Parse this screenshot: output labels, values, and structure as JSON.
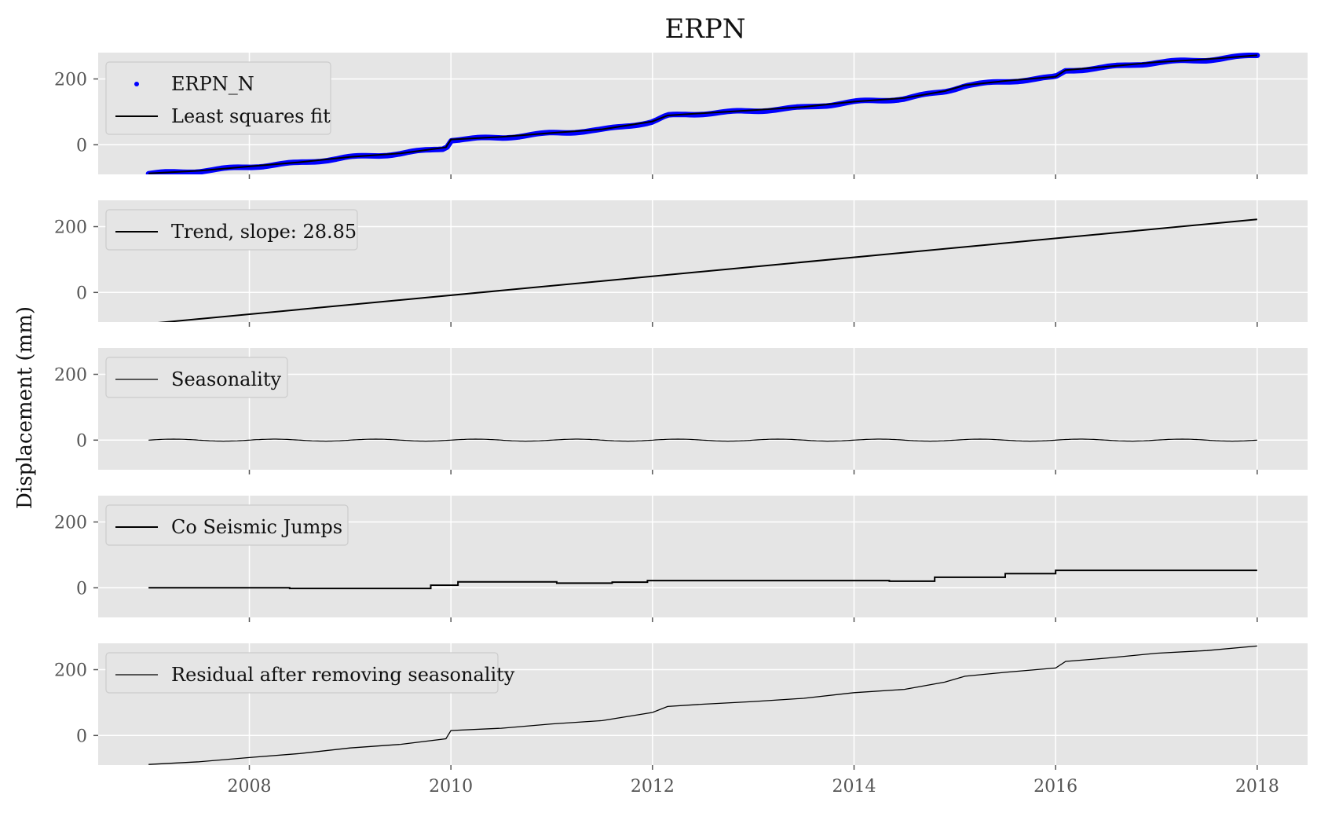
{
  "chart_data": {
    "type": "line",
    "title": "ERPN",
    "ylabel": "Displacement (mm)",
    "xlabel": "",
    "xlim": [
      2006.5,
      2018.5
    ],
    "ylim": [
      -90,
      280
    ],
    "x_ticks": [
      2008,
      2010,
      2012,
      2014,
      2016,
      2018
    ],
    "y_ticks": [
      0,
      200
    ],
    "grid": true,
    "legend_position": "top-left",
    "colors": {
      "axes_bg": "#e5e5e5",
      "grid": "#ffffff",
      "line": "#000000",
      "points": "#0000ff",
      "tick_text": "#555555"
    },
    "subplots": [
      {
        "id": "observed",
        "series": [
          {
            "name": "ERPN_N",
            "kind": "points",
            "x": [
              2007.0,
              2007.5,
              2008.0,
              2008.5,
              2009.0,
              2009.5,
              2009.95,
              2010.0,
              2010.5,
              2011.0,
              2011.5,
              2012.0,
              2012.15,
              2012.5,
              2013.0,
              2013.5,
              2014.0,
              2014.5,
              2014.9,
              2015.1,
              2015.5,
              2016.0,
              2016.1,
              2016.5,
              2017.0,
              2017.5,
              2018.0
            ],
            "y": [
              -88,
              -80,
              -67,
              -55,
              -38,
              -27,
              -10,
              15,
              22,
              35,
              45,
              70,
              88,
              95,
              103,
              113,
              130,
              140,
              162,
              180,
              192,
              205,
              225,
              235,
              250,
              258,
              272
            ]
          },
          {
            "name": "Least squares fit",
            "kind": "line",
            "x": [
              2007.0,
              2007.5,
              2008.0,
              2008.5,
              2009.0,
              2009.5,
              2009.95,
              2010.0,
              2010.5,
              2011.0,
              2011.5,
              2012.0,
              2012.15,
              2012.5,
              2013.0,
              2013.5,
              2014.0,
              2014.5,
              2014.9,
              2015.1,
              2015.5,
              2016.0,
              2016.1,
              2016.5,
              2017.0,
              2017.5,
              2018.0
            ],
            "y": [
              -87,
              -79,
              -66,
              -53,
              -37,
              -26,
              -8,
              16,
              24,
              36,
              47,
              71,
              89,
              96,
              105,
              115,
              131,
              142,
              163,
              181,
              194,
              207,
              227,
              237,
              251,
              260,
              272
            ]
          }
        ]
      },
      {
        "id": "trend",
        "series": [
          {
            "name": "Trend, slope: 28.85",
            "kind": "line",
            "x": [
              2007.0,
              2018.0
            ],
            "y": [
              -95,
              222
            ]
          }
        ]
      },
      {
        "id": "seasonality",
        "series": [
          {
            "name": "Seasonality",
            "kind": "thin-line",
            "amplitude": 3,
            "period_years": 1.0,
            "x_range": [
              2007.0,
              2018.0
            ]
          }
        ]
      },
      {
        "id": "jumps",
        "series": [
          {
            "name": "Co Seismic Jumps",
            "kind": "step",
            "x": [
              2007.0,
              2008.4,
              2009.8,
              2010.07,
              2011.05,
              2011.6,
              2011.95,
              2014.35,
              2014.8,
              2015.5,
              2016.0,
              2018.0
            ],
            "y": [
              0,
              -2,
              8,
              18,
              14,
              17,
              22,
              20,
              32,
              43,
              53,
              53
            ]
          }
        ]
      },
      {
        "id": "residual",
        "series": [
          {
            "name": "Residual after removing seasonality",
            "kind": "thin-line",
            "x": [
              2007.0,
              2007.5,
              2008.0,
              2008.5,
              2009.0,
              2009.5,
              2009.95,
              2010.0,
              2010.5,
              2011.0,
              2011.5,
              2012.0,
              2012.15,
              2012.5,
              2013.0,
              2013.5,
              2014.0,
              2014.5,
              2014.9,
              2015.1,
              2015.5,
              2016.0,
              2016.1,
              2016.5,
              2017.0,
              2017.5,
              2018.0
            ],
            "y": [
              -88,
              -80,
              -67,
              -55,
              -38,
              -27,
              -10,
              15,
              22,
              35,
              45,
              70,
              88,
              95,
              103,
              113,
              130,
              140,
              162,
              180,
              192,
              205,
              225,
              235,
              250,
              258,
              272
            ]
          }
        ]
      }
    ]
  }
}
